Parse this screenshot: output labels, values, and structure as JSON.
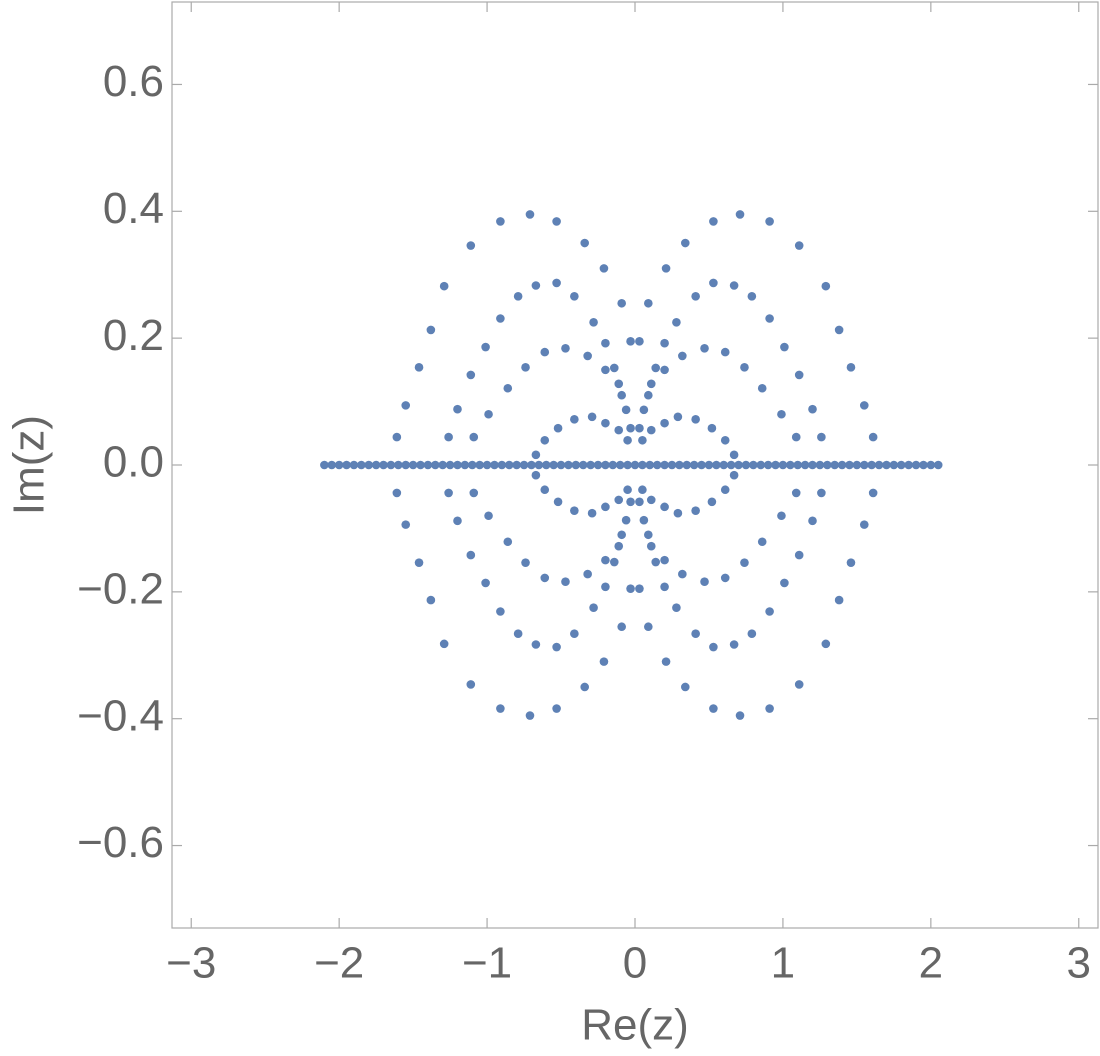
{
  "chart_data": {
    "type": "scatter",
    "color": "#5e81b5",
    "x_label": "Re(z)",
    "y_label": "Im(z)",
    "xlim": [
      -3.13,
      3.13
    ],
    "ylim": [
      -0.73,
      0.73
    ],
    "xticks": [
      {
        "value": -3,
        "label": "−3"
      },
      {
        "value": -2,
        "label": "−2"
      },
      {
        "value": -1,
        "label": "−1"
      },
      0,
      1,
      2,
      3
    ],
    "yticks": [
      {
        "value": -0.6,
        "label": "−0.6"
      },
      {
        "value": -0.4,
        "label": "−0.4"
      },
      {
        "value": -0.2,
        "label": "−0.2"
      },
      {
        "value": 0,
        "label": "0.0"
      },
      0.2,
      0.4,
      0.6
    ],
    "x": [
      1.61,
      1.55,
      1.46,
      1.38,
      1.29,
      1.11,
      0.91,
      0.71,
      0.53,
      0.34,
      0.21,
      0.09,
      0.03,
      1.26,
      1.2,
      1.11,
      1.01,
      0.91,
      0.79,
      0.67,
      0.53,
      0.41,
      0.28,
      0.2,
      0.14,
      0.09,
      1.09,
      0.99,
      0.86,
      0.74,
      0.61,
      0.47,
      0.32,
      0.2,
      0.11,
      0.06,
      0.03,
      0.67,
      0.61,
      0.52,
      0.41,
      0.29,
      0.2,
      0.11,
      0.05,
      -1.61,
      -1.55,
      -1.46,
      -1.38,
      -1.29,
      -1.11,
      -0.91,
      -0.71,
      -0.53,
      -0.34,
      -0.21,
      -0.09,
      -0.03,
      -1.26,
      -1.2,
      -1.11,
      -1.01,
      -0.91,
      -0.79,
      -0.67,
      -0.53,
      -0.41,
      -0.28,
      -0.2,
      -0.14,
      -0.09,
      -1.09,
      -0.99,
      -0.86,
      -0.74,
      -0.61,
      -0.47,
      -0.32,
      -0.2,
      -0.11,
      -0.06,
      -0.03,
      -0.67,
      -0.61,
      -0.52,
      -0.41,
      -0.29,
      -0.2,
      -0.11,
      -0.05,
      -1.61,
      -1.55,
      -1.46,
      -1.38,
      -1.29,
      -1.11,
      -0.91,
      -0.71,
      -0.53,
      -0.34,
      -0.21,
      -0.09,
      -0.03,
      -1.26,
      -1.2,
      -1.11,
      -1.01,
      -0.91,
      -0.79,
      -0.67,
      -0.53,
      -0.41,
      -0.28,
      -0.2,
      -0.14,
      -0.09,
      -1.09,
      -0.99,
      -0.86,
      -0.74,
      -0.61,
      -0.47,
      -0.32,
      -0.2,
      -0.11,
      -0.06,
      -0.03,
      -0.67,
      -0.61,
      -0.52,
      -0.41,
      -0.29,
      -0.2,
      -0.11,
      -0.05,
      1.61,
      1.55,
      1.46,
      1.38,
      1.29,
      1.11,
      0.91,
      0.71,
      0.53,
      0.34,
      0.21,
      0.09,
      0.03,
      1.26,
      1.2,
      1.11,
      1.01,
      0.91,
      0.79,
      0.67,
      0.53,
      0.41,
      0.28,
      0.2,
      0.14,
      0.09,
      1.09,
      0.99,
      0.86,
      0.74,
      0.61,
      0.47,
      0.32,
      0.2,
      0.11,
      0.06,
      0.03,
      0.67,
      0.61,
      0.52,
      0.41,
      0.29,
      0.2,
      0.11,
      0.05,
      -2.1,
      -2.05,
      -2,
      -1.95,
      -1.9,
      -1.85,
      -1.8,
      -1.75,
      -1.7,
      -1.65,
      -1.6,
      -1.55,
      -1.5,
      -1.45,
      -1.4,
      -1.35,
      -1.3,
      -1.25,
      -1.2,
      -1.15,
      -1.1,
      -1.05,
      -1,
      -0.95,
      -0.9,
      -0.85,
      -0.8,
      -0.75,
      -0.7,
      -0.65,
      -0.6,
      -0.55,
      -0.5,
      -0.45,
      -0.4,
      -0.35,
      -0.3,
      -0.25,
      -0.2,
      -0.15,
      -0.1,
      -0.05,
      0,
      0.05,
      0.1,
      0.15,
      0.2,
      0.25,
      0.3,
      0.35,
      0.4,
      0.45,
      0.5,
      0.55,
      0.6,
      0.65,
      0.7,
      0.75,
      0.8,
      0.85,
      0.9,
      0.95,
      1,
      1.05,
      1.1,
      1.15,
      1.2,
      1.25,
      1.3,
      1.35,
      1.4,
      1.45,
      1.5,
      1.55,
      1.6,
      1.65,
      1.7,
      1.75,
      1.8,
      1.85,
      1.9,
      1.95,
      2,
      2.05
    ],
    "values": [
      0.044,
      0.094,
      0.154,
      0.213,
      0.282,
      0.346,
      0.384,
      0.395,
      0.384,
      0.35,
      0.31,
      0.255,
      0.195,
      0.044,
      0.088,
      0.142,
      0.186,
      0.231,
      0.266,
      0.283,
      0.287,
      0.266,
      0.225,
      0.192,
      0.153,
      0.11,
      0.044,
      0.08,
      0.121,
      0.154,
      0.178,
      0.184,
      0.172,
      0.15,
      0.128,
      0.087,
      0.058,
      0.016,
      0.039,
      0.058,
      0.072,
      0.076,
      0.066,
      0.055,
      0.039,
      0.044,
      0.094,
      0.154,
      0.213,
      0.282,
      0.346,
      0.384,
      0.395,
      0.384,
      0.35,
      0.31,
      0.255,
      0.195,
      0.044,
      0.088,
      0.142,
      0.186,
      0.231,
      0.266,
      0.283,
      0.287,
      0.266,
      0.225,
      0.192,
      0.153,
      0.11,
      0.044,
      0.08,
      0.121,
      0.154,
      0.178,
      0.184,
      0.172,
      0.15,
      0.128,
      0.087,
      0.058,
      0.016,
      0.039,
      0.058,
      0.072,
      0.076,
      0.066,
      0.055,
      0.039,
      -0.044,
      -0.094,
      -0.154,
      -0.213,
      -0.282,
      -0.346,
      -0.384,
      -0.395,
      -0.384,
      -0.35,
      -0.31,
      -0.255,
      -0.195,
      -0.044,
      -0.088,
      -0.142,
      -0.186,
      -0.231,
      -0.266,
      -0.283,
      -0.287,
      -0.266,
      -0.225,
      -0.192,
      -0.153,
      -0.11,
      -0.044,
      -0.08,
      -0.121,
      -0.154,
      -0.178,
      -0.184,
      -0.172,
      -0.15,
      -0.128,
      -0.087,
      -0.058,
      -0.016,
      -0.039,
      -0.058,
      -0.072,
      -0.076,
      -0.066,
      -0.055,
      -0.039,
      -0.044,
      -0.094,
      -0.154,
      -0.213,
      -0.282,
      -0.346,
      -0.384,
      -0.395,
      -0.384,
      -0.35,
      -0.31,
      -0.255,
      -0.195,
      -0.044,
      -0.088,
      -0.142,
      -0.186,
      -0.231,
      -0.266,
      -0.283,
      -0.287,
      -0.266,
      -0.225,
      -0.192,
      -0.153,
      -0.11,
      -0.044,
      -0.08,
      -0.121,
      -0.154,
      -0.178,
      -0.184,
      -0.172,
      -0.15,
      -0.128,
      -0.087,
      -0.058,
      -0.016,
      -0.039,
      -0.058,
      -0.072,
      -0.076,
      -0.066,
      -0.055,
      -0.039,
      0,
      0,
      0,
      0,
      0,
      0,
      0,
      0,
      0,
      0,
      0,
      0,
      0,
      0,
      0,
      0,
      0,
      0,
      0,
      0,
      0,
      0,
      0,
      0,
      0,
      0,
      0,
      0,
      0,
      0,
      0,
      0,
      0,
      0,
      0,
      0,
      0,
      0,
      0,
      0,
      0,
      0,
      0,
      0,
      0,
      0,
      0,
      0,
      0,
      0,
      0,
      0,
      0,
      0,
      0,
      0,
      0,
      0,
      0,
      0,
      0,
      0,
      0,
      0,
      0,
      0,
      0,
      0,
      0,
      0,
      0,
      0,
      0,
      0,
      0,
      0,
      0,
      0,
      0,
      0,
      0,
      0,
      0,
      0
    ]
  }
}
